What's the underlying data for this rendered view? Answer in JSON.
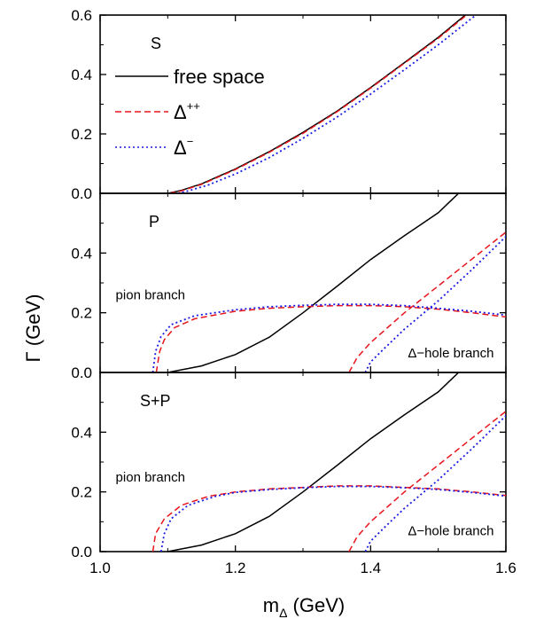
{
  "chart_data": {
    "type": "line",
    "xlabel": "m",
    "xlabel_subscript": "Δ",
    "xlabel_unit": " (GeV)",
    "ylabel": "Γ (GeV)",
    "xlim": [
      1.0,
      1.6
    ],
    "xticks": [
      "1.0",
      "1.2",
      "1.4",
      "1.6"
    ],
    "xtick_values": [
      1.0,
      1.2,
      1.4,
      1.6
    ],
    "colors": {
      "free space": "#000000",
      "Delta++": "#e8141c",
      "Delta-": "#1a1ae6"
    },
    "legend": [
      {
        "label": "free space",
        "superscript": "",
        "style": "solid",
        "color": "#000000"
      },
      {
        "label": "Δ",
        "superscript": "++",
        "style": "dashed",
        "color": "#e8141c"
      },
      {
        "label": "Δ",
        "superscript": "−",
        "style": "dotted",
        "color": "#1a1ae6"
      }
    ],
    "panels": [
      {
        "label": "S",
        "ylim": [
          0.0,
          0.6
        ],
        "yticks": [
          "0.0",
          "0.2",
          "0.4",
          "0.6"
        ],
        "ytick_values": [
          0.0,
          0.2,
          0.4,
          0.6
        ],
        "annotations": [],
        "series": [
          {
            "key": "free",
            "style": "solid",
            "color": "#000000",
            "points": [
              [
                1.1,
                0.0
              ],
              [
                1.12,
                0.01
              ],
              [
                1.15,
                0.032
              ],
              [
                1.2,
                0.082
              ],
              [
                1.25,
                0.14
              ],
              [
                1.3,
                0.205
              ],
              [
                1.35,
                0.276
              ],
              [
                1.4,
                0.356
              ],
              [
                1.45,
                0.44
              ],
              [
                1.5,
                0.525
              ],
              [
                1.54,
                0.6
              ]
            ]
          },
          {
            "key": "dpp",
            "style": "dashed",
            "color": "#e8141c",
            "points": [
              [
                1.102,
                0.0
              ],
              [
                1.12,
                0.008
              ],
              [
                1.15,
                0.03
              ],
              [
                1.2,
                0.08
              ],
              [
                1.25,
                0.138
              ],
              [
                1.3,
                0.202
              ],
              [
                1.35,
                0.274
              ],
              [
                1.4,
                0.354
              ],
              [
                1.45,
                0.438
              ],
              [
                1.5,
                0.522
              ],
              [
                1.542,
                0.6
              ]
            ]
          },
          {
            "key": "dm",
            "style": "dotted",
            "color": "#1a1ae6",
            "points": [
              [
                1.115,
                0.0
              ],
              [
                1.13,
                0.008
              ],
              [
                1.16,
                0.028
              ],
              [
                1.2,
                0.065
              ],
              [
                1.25,
                0.12
              ],
              [
                1.3,
                0.185
              ],
              [
                1.35,
                0.256
              ],
              [
                1.4,
                0.334
              ],
              [
                1.45,
                0.416
              ],
              [
                1.5,
                0.5
              ],
              [
                1.55,
                0.59
              ],
              [
                1.556,
                0.6
              ]
            ]
          }
        ]
      },
      {
        "label": "P",
        "ylim": [
          0.0,
          0.6
        ],
        "yticks": [
          "0.0",
          "0.2",
          "0.4"
        ],
        "ytick_values": [
          0.0,
          0.2,
          0.4
        ],
        "annotations": [
          {
            "text": "pion branch",
            "x": 1.023,
            "y": 0.245
          },
          {
            "text": "Δ−hole branch",
            "x": 1.455,
            "y": 0.05
          }
        ],
        "series": [
          {
            "key": "free",
            "style": "solid",
            "color": "#000000",
            "points": [
              [
                1.1,
                0.0
              ],
              [
                1.15,
                0.022
              ],
              [
                1.2,
                0.06
              ],
              [
                1.25,
                0.118
              ],
              [
                1.3,
                0.2
              ],
              [
                1.35,
                0.288
              ],
              [
                1.4,
                0.378
              ],
              [
                1.45,
                0.458
              ],
              [
                1.5,
                0.535
              ],
              [
                1.53,
                0.6
              ]
            ]
          },
          {
            "key": "dpp",
            "style": "dashed",
            "color": "#e8141c",
            "points": [
              [
                1.083,
                0.0
              ],
              [
                1.088,
                0.07
              ],
              [
                1.095,
                0.11
              ],
              [
                1.11,
                0.15
              ],
              [
                1.14,
                0.18
              ],
              [
                1.2,
                0.205
              ],
              [
                1.25,
                0.215
              ],
              [
                1.3,
                0.22
              ],
              [
                1.35,
                0.224
              ],
              [
                1.4,
                0.224
              ],
              [
                1.45,
                0.22
              ],
              [
                1.5,
                0.212
              ],
              [
                1.55,
                0.2
              ],
              [
                1.6,
                0.186
              ]
            ]
          },
          {
            "key": "dm",
            "style": "dotted",
            "color": "#1a1ae6",
            "points": [
              [
                1.078,
                0.0
              ],
              [
                1.082,
                0.07
              ],
              [
                1.09,
                0.12
              ],
              [
                1.105,
                0.16
              ],
              [
                1.14,
                0.19
              ],
              [
                1.2,
                0.21
              ],
              [
                1.25,
                0.22
              ],
              [
                1.3,
                0.225
              ],
              [
                1.35,
                0.228
              ],
              [
                1.4,
                0.228
              ],
              [
                1.45,
                0.224
              ],
              [
                1.5,
                0.215
              ],
              [
                1.55,
                0.205
              ],
              [
                1.6,
                0.192
              ]
            ]
          },
          {
            "key": "dpp",
            "style": "dashed",
            "color": "#e8141c",
            "points": [
              [
                1.368,
                0.0
              ],
              [
                1.38,
                0.05
              ],
              [
                1.4,
                0.1
              ],
              [
                1.45,
                0.2
              ],
              [
                1.5,
                0.29
              ],
              [
                1.55,
                0.38
              ],
              [
                1.6,
                0.47
              ]
            ]
          },
          {
            "key": "dm",
            "style": "dotted",
            "color": "#1a1ae6",
            "points": [
              [
                1.392,
                0.0
              ],
              [
                1.4,
                0.035
              ],
              [
                1.42,
                0.08
              ],
              [
                1.45,
                0.145
              ],
              [
                1.5,
                0.24
              ],
              [
                1.55,
                0.345
              ],
              [
                1.6,
                0.455
              ]
            ]
          }
        ]
      },
      {
        "label": "S+P",
        "ylim": [
          0.0,
          0.6
        ],
        "yticks": [
          "0.0",
          "0.2",
          "0.4"
        ],
        "ytick_values": [
          0.0,
          0.2,
          0.4
        ],
        "annotations": [
          {
            "text": "pion branch",
            "x": 1.023,
            "y": 0.235
          },
          {
            "text": "Δ−hole branch",
            "x": 1.455,
            "y": 0.055
          }
        ],
        "series": [
          {
            "key": "free",
            "style": "solid",
            "color": "#000000",
            "points": [
              [
                1.1,
                0.0
              ],
              [
                1.15,
                0.022
              ],
              [
                1.2,
                0.06
              ],
              [
                1.25,
                0.118
              ],
              [
                1.3,
                0.2
              ],
              [
                1.35,
                0.288
              ],
              [
                1.4,
                0.378
              ],
              [
                1.45,
                0.458
              ],
              [
                1.5,
                0.535
              ],
              [
                1.53,
                0.6
              ]
            ]
          },
          {
            "key": "dpp",
            "style": "dashed",
            "color": "#e8141c",
            "points": [
              [
                1.078,
                0.0
              ],
              [
                1.082,
                0.06
              ],
              [
                1.095,
                0.11
              ],
              [
                1.12,
                0.155
              ],
              [
                1.16,
                0.185
              ],
              [
                1.2,
                0.2
              ],
              [
                1.25,
                0.21
              ],
              [
                1.3,
                0.215
              ],
              [
                1.35,
                0.22
              ],
              [
                1.4,
                0.22
              ],
              [
                1.45,
                0.215
              ],
              [
                1.5,
                0.21
              ],
              [
                1.55,
                0.2
              ],
              [
                1.6,
                0.188
              ]
            ]
          },
          {
            "key": "dm",
            "style": "dotted",
            "color": "#1a1ae6",
            "points": [
              [
                1.09,
                0.0
              ],
              [
                1.095,
                0.06
              ],
              [
                1.105,
                0.11
              ],
              [
                1.13,
                0.155
              ],
              [
                1.17,
                0.185
              ],
              [
                1.2,
                0.198
              ],
              [
                1.25,
                0.208
              ],
              [
                1.3,
                0.214
              ],
              [
                1.35,
                0.218
              ],
              [
                1.4,
                0.218
              ],
              [
                1.45,
                0.214
              ],
              [
                1.5,
                0.208
              ],
              [
                1.55,
                0.198
              ],
              [
                1.6,
                0.186
              ]
            ]
          },
          {
            "key": "dpp",
            "style": "dashed",
            "color": "#e8141c",
            "points": [
              [
                1.368,
                0.0
              ],
              [
                1.38,
                0.05
              ],
              [
                1.4,
                0.1
              ],
              [
                1.45,
                0.2
              ],
              [
                1.5,
                0.29
              ],
              [
                1.55,
                0.38
              ],
              [
                1.6,
                0.47
              ]
            ]
          },
          {
            "key": "dm",
            "style": "dotted",
            "color": "#1a1ae6",
            "points": [
              [
                1.392,
                0.0
              ],
              [
                1.4,
                0.035
              ],
              [
                1.42,
                0.08
              ],
              [
                1.45,
                0.145
              ],
              [
                1.5,
                0.24
              ],
              [
                1.55,
                0.345
              ],
              [
                1.6,
                0.455
              ]
            ]
          }
        ]
      }
    ]
  }
}
